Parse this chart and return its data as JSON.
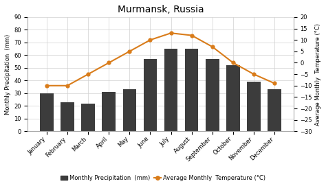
{
  "title": "Murmansk, Russia",
  "months": [
    "January",
    "February",
    "March",
    "April",
    "May",
    "June",
    "July",
    "August",
    "September",
    "October",
    "November",
    "December"
  ],
  "precipitation": [
    30,
    23,
    22,
    31,
    33,
    57,
    65,
    65,
    57,
    52,
    39,
    33
  ],
  "temperature": [
    -10,
    -10,
    -5,
    0,
    5,
    10,
    13,
    12,
    7,
    0,
    -5,
    -9
  ],
  "bar_color": "#3c3c3c",
  "line_color": "#d97c1a",
  "marker_color": "#d97c1a",
  "ylabel_left": "Monthly Precipitation  (mm)",
  "ylabel_right": "Average Monthly  Temperature (°C)",
  "ylim_left": [
    0,
    90
  ],
  "ylim_right": [
    -30,
    20
  ],
  "yticks_left": [
    0,
    10,
    20,
    30,
    40,
    50,
    60,
    70,
    80,
    90
  ],
  "yticks_right": [
    20,
    15,
    10,
    5,
    0,
    -5,
    -10,
    -15,
    -20,
    -25,
    -30
  ],
  "legend_precip": "Monthly Precipitation  (mm)",
  "legend_temp": "Average Monthly  Temperature (°C)",
  "background_color": "#ffffff",
  "grid_color": "#d0d0d0",
  "title_fontsize": 10,
  "label_fontsize": 6,
  "ylabel_fontsize": 6,
  "tick_fontsize": 6,
  "legend_fontsize": 6
}
